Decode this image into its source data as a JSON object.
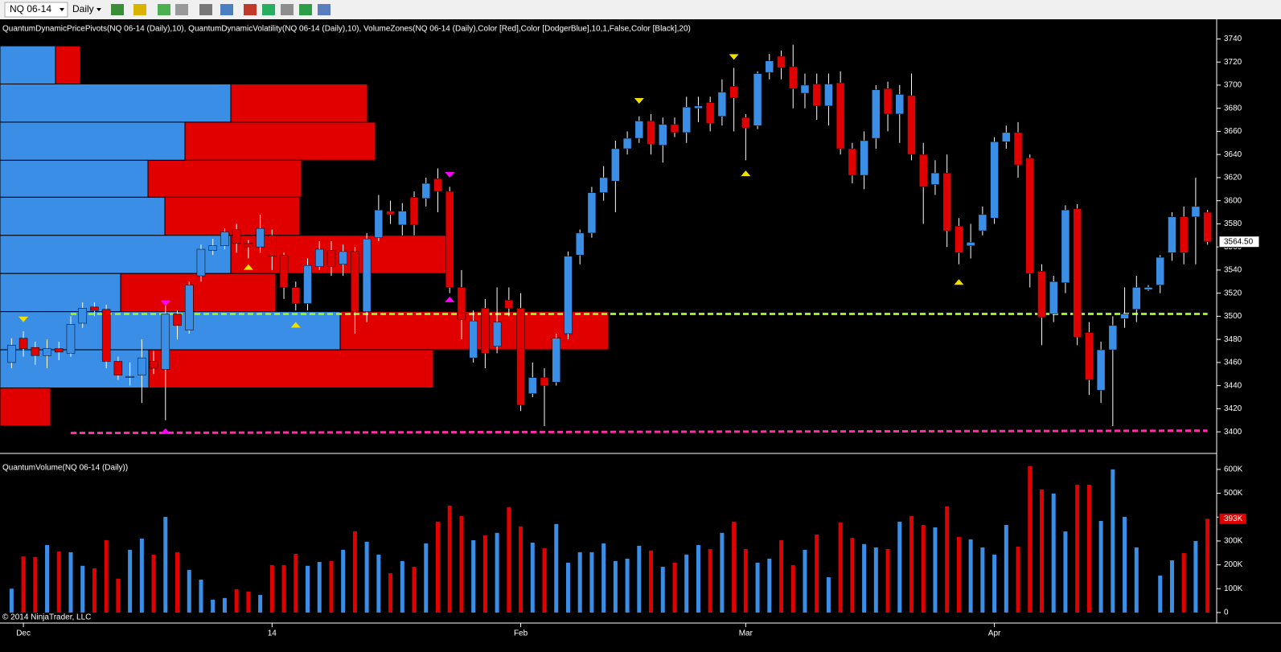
{
  "toolbar": {
    "symbol": "NQ 06-14",
    "period": "Daily"
  },
  "chart_data": [
    {
      "type": "candlestick",
      "title": "QuantumDynamicPricePivots(NQ 06-14 (Daily),10), QuantumDynamicVolatility(NQ 06-14 (Daily),10), VolumeZones(NQ 06-14 (Daily),Color [Red],Color [DodgerBlue],10,1,False,Color [Black],20)",
      "categories": [
        null,
        "Dec",
        null,
        null,
        null,
        null,
        null,
        null,
        null,
        null,
        null,
        null,
        null,
        null,
        null,
        null,
        null,
        null,
        null,
        null,
        null,
        null,
        "14",
        null,
        null,
        null,
        null,
        null,
        null,
        null,
        null,
        null,
        null,
        null,
        null,
        null,
        null,
        null,
        null,
        null,
        null,
        null,
        null,
        "Feb",
        null,
        null,
        null,
        null,
        null,
        null,
        null,
        null,
        null,
        null,
        null,
        null,
        null,
        null,
        null,
        null,
        null,
        null,
        "Mar",
        null,
        null,
        null,
        null,
        null,
        null,
        null,
        null,
        null,
        null,
        null,
        null,
        null,
        null,
        null,
        null,
        null,
        null,
        null,
        null,
        "Apr",
        null,
        null,
        null,
        null,
        null,
        null,
        null,
        null,
        null,
        null,
        null,
        null,
        null,
        null,
        null,
        null,
        null,
        null
      ],
      "open": [
        3460,
        3481,
        3473,
        3466,
        3472,
        3468,
        3494,
        3508,
        3506,
        3461,
        3447,
        3449,
        3461,
        3454,
        3502,
        3488,
        3535,
        3557,
        3561,
        3575,
        3563,
        3560,
        3570,
        3553,
        3525,
        3511,
        3543,
        3557,
        3545,
        3556,
        3504,
        3568,
        3591,
        3579,
        3603,
        3602,
        3619,
        3608,
        3525,
        3464,
        3507,
        3474,
        3514,
        3507,
        3433,
        3447,
        3443,
        3485,
        3553,
        3572,
        3607,
        3617,
        3645,
        3654,
        3669,
        3648,
        3666,
        3659,
        3680,
        3685,
        3673,
        3699,
        3672,
        3665,
        3711,
        3725,
        3716,
        3693,
        3701,
        3682,
        3702,
        3645,
        3622,
        3654,
        3697,
        3675,
        3691,
        3640,
        3614,
        3624,
        3578,
        3561,
        3574,
        3585,
        3651,
        3659,
        3637,
        3539,
        3502,
        3529,
        3593,
        3486,
        3436,
        3471,
        3498,
        3506,
        3523,
        3527,
        3555,
        3586,
        3586,
        3590
      ],
      "high": [
        3481,
        3487,
        3478,
        3480,
        3478,
        3500,
        3512,
        3512,
        3510,
        3465,
        3460,
        3480,
        3470,
        3510,
        3505,
        3530,
        3562,
        3567,
        3576,
        3580,
        3566,
        3588,
        3575,
        3555,
        3530,
        3550,
        3565,
        3565,
        3562,
        3560,
        3572,
        3605,
        3600,
        3598,
        3608,
        3620,
        3628,
        3612,
        3540,
        3505,
        3515,
        3525,
        3525,
        3520,
        3460,
        3455,
        3485,
        3556,
        3575,
        3612,
        3630,
        3652,
        3660,
        3673,
        3675,
        3672,
        3672,
        3690,
        3690,
        3690,
        3705,
        3715,
        3675,
        3712,
        3727,
        3730,
        3735,
        3710,
        3710,
        3710,
        3712,
        3650,
        3660,
        3700,
        3703,
        3700,
        3710,
        3650,
        3635,
        3640,
        3585,
        3580,
        3595,
        3655,
        3665,
        3668,
        3640,
        3545,
        3535,
        3596,
        3597,
        3495,
        3478,
        3500,
        3525,
        3535,
        3527,
        3553,
        3590,
        3595,
        3620,
        3592
      ],
      "low": [
        3455,
        3465,
        3458,
        3455,
        3462,
        3465,
        3490,
        3500,
        3455,
        3445,
        3440,
        3425,
        3450,
        3410,
        3480,
        3485,
        3530,
        3553,
        3558,
        3555,
        3550,
        3555,
        3540,
        3515,
        3505,
        3505,
        3540,
        3535,
        3535,
        3485,
        3495,
        3565,
        3580,
        3570,
        3570,
        3595,
        3590,
        3520,
        3480,
        3460,
        3455,
        3468,
        3500,
        3418,
        3430,
        3405,
        3440,
        3480,
        3545,
        3568,
        3600,
        3590,
        3640,
        3650,
        3640,
        3633,
        3655,
        3650,
        3668,
        3660,
        3665,
        3660,
        3635,
        3662,
        3705,
        3705,
        3680,
        3680,
        3670,
        3665,
        3640,
        3615,
        3610,
        3645,
        3660,
        3650,
        3635,
        3580,
        3605,
        3560,
        3545,
        3550,
        3570,
        3580,
        3645,
        3620,
        3525,
        3475,
        3495,
        3520,
        3475,
        3432,
        3425,
        3405,
        3490,
        3495,
        3522,
        3520,
        3548,
        3545,
        3545,
        3562
      ],
      "close": [
        3475,
        3472,
        3466,
        3472,
        3469,
        3493,
        3507,
        3505,
        3461,
        3449,
        3448,
        3464,
        3455,
        3502,
        3492,
        3527,
        3558,
        3561,
        3573,
        3563,
        3560,
        3576,
        3552,
        3525,
        3511,
        3544,
        3558,
        3543,
        3556,
        3504,
        3567,
        3592,
        3588,
        3591,
        3579,
        3615,
        3608,
        3525,
        3497,
        3496,
        3468,
        3495,
        3507,
        3423,
        3447,
        3440,
        3481,
        3552,
        3572,
        3607,
        3620,
        3645,
        3654,
        3669,
        3649,
        3666,
        3659,
        3681,
        3682,
        3667,
        3694,
        3689,
        3663,
        3710,
        3721,
        3715,
        3697,
        3700,
        3682,
        3701,
        3645,
        3622,
        3652,
        3696,
        3675,
        3692,
        3640,
        3612,
        3624,
        3574,
        3555,
        3564,
        3588,
        3651,
        3659,
        3631,
        3537,
        3499,
        3530,
        3592,
        3482,
        3445,
        3471,
        3492,
        3502,
        3525,
        3525,
        3551,
        3586,
        3555,
        3595,
        3564.5
      ],
      "up_color": "#3a8ee6",
      "down_color": "#e00000",
      "wick_color": "#ffffff",
      "ylim": [
        3382,
        3757
      ],
      "yticks": [
        3400,
        3420,
        3440,
        3460,
        3480,
        3500,
        3520,
        3540,
        3560,
        3580,
        3600,
        3620,
        3640,
        3660,
        3680,
        3700,
        3720,
        3740
      ],
      "last_label": {
        "value": 3564.5,
        "label": "3564.50"
      },
      "volume_zones": [
        {
          "low": 3701,
          "high": 3734,
          "up": 69,
          "down": 31
        },
        {
          "low": 3668,
          "high": 3701,
          "up": 287,
          "down": 170
        },
        {
          "low": 3635,
          "high": 3668,
          "up": 230,
          "down": 237
        },
        {
          "low": 3603,
          "high": 3635,
          "up": 184,
          "down": 191
        },
        {
          "low": 3570,
          "high": 3603,
          "up": 205,
          "down": 168
        },
        {
          "low": 3537,
          "high": 3570,
          "up": 287,
          "down": 270
        },
        {
          "low": 3504,
          "high": 3537,
          "up": 150,
          "down": 193
        },
        {
          "low": 3471,
          "high": 3504,
          "up": 423,
          "down": 334
        },
        {
          "low": 3438,
          "high": 3471,
          "up": 185,
          "down": 354
        },
        {
          "low": 3405,
          "high": 3438,
          "up": 0,
          "down": 63
        }
      ],
      "levels": [
        {
          "start": 5,
          "values": [
            3502,
            3502
          ],
          "color": "#99ee22"
        },
        {
          "start": 5,
          "values": [
            3399,
            3401
          ],
          "color": "#ff2fa8"
        }
      ],
      "pivots": [
        {
          "index": 1,
          "price": 3497,
          "dir": "down",
          "color": "#f0e000"
        },
        {
          "index": 13,
          "price": 3511,
          "dir": "down",
          "color": "#ff00ff"
        },
        {
          "index": 13,
          "price": 3401,
          "dir": "up",
          "color": "#ff00ff"
        },
        {
          "index": 20,
          "price": 3543,
          "dir": "up",
          "color": "#f0e000"
        },
        {
          "index": 24,
          "price": 3493,
          "dir": "up",
          "color": "#f0e000"
        },
        {
          "index": 37,
          "price": 3622,
          "dir": "down",
          "color": "#ff00ff"
        },
        {
          "index": 37,
          "price": 3515,
          "dir": "up",
          "color": "#ff00ff"
        },
        {
          "index": 53,
          "price": 3686,
          "dir": "down",
          "color": "#f0e000"
        },
        {
          "index": 61,
          "price": 3724,
          "dir": "down",
          "color": "#f0e000"
        },
        {
          "index": 62,
          "price": 3624,
          "dir": "up",
          "color": "#f0e000"
        },
        {
          "index": 80,
          "price": 3530,
          "dir": "up",
          "color": "#f0e000"
        }
      ]
    },
    {
      "type": "bar",
      "title": "QuantumVolume(NQ 06-14 (Daily))",
      "annotation": "© 2014 NinjaTrader, LLC",
      "values": [
        100,
        235,
        233,
        283,
        256,
        253,
        196,
        185,
        303,
        142,
        263,
        310,
        243,
        401,
        253,
        179,
        138,
        54,
        61,
        98,
        88,
        74,
        199,
        199,
        246,
        196,
        212,
        216,
        263,
        340,
        297,
        243,
        165,
        216,
        192,
        290,
        381,
        448,
        404,
        303,
        324,
        334,
        442,
        361,
        293,
        270,
        371,
        209,
        253,
        253,
        290,
        216,
        226,
        280,
        260,
        192,
        209,
        243,
        283,
        266,
        334,
        381,
        266,
        209,
        226,
        303,
        199,
        263,
        327,
        148,
        378,
        313,
        287,
        273,
        266,
        381,
        404,
        367,
        357,
        445,
        317,
        307,
        273,
        243,
        367,
        276,
        613,
        516,
        499,
        340,
        536,
        536,
        384,
        600,
        401,
        273,
        null,
        155,
        219,
        249,
        300,
        393
      ],
      "up_color": "#3a8ee6",
      "down_color": "#e00000",
      "ylim": [
        -44,
        640
      ],
      "yticks": [
        0,
        {
          "value": 100,
          "label": "100K"
        },
        {
          "value": 200,
          "label": "200K"
        },
        {
          "value": 300,
          "label": "300K"
        },
        {
          "value": 400,
          "label": "400K"
        },
        {
          "value": 500,
          "label": "500K"
        },
        {
          "value": 600,
          "label": "600K"
        }
      ],
      "last_label": {
        "value": 393,
        "label": "393K"
      }
    }
  ]
}
